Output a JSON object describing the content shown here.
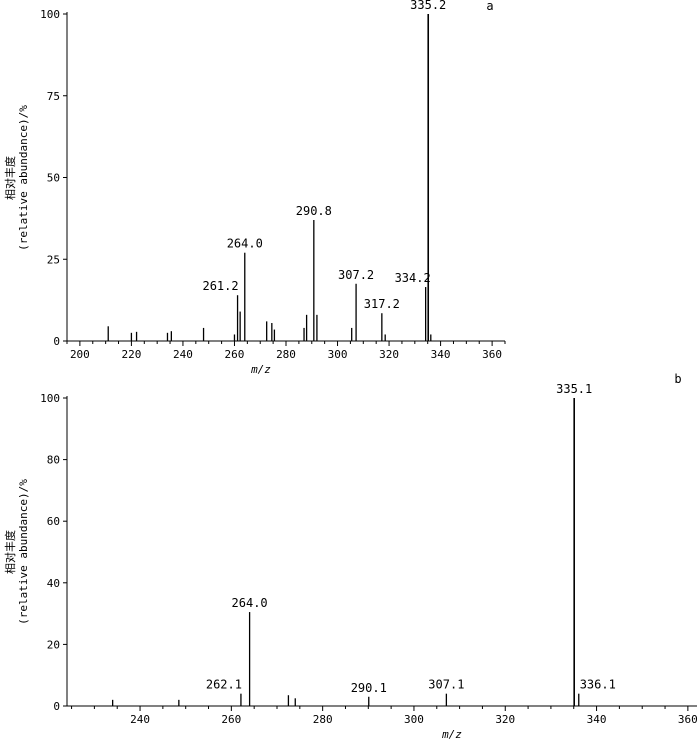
{
  "chart_data": [
    {
      "type": "bar",
      "panel_label": "a",
      "xlabel": "m/z",
      "ylabel": "相对丰度",
      "ylabel_en": "(relative abundance)/%",
      "xlim": [
        195,
        365
      ],
      "ylim": [
        0,
        100
      ],
      "xticks": [
        "200",
        "220",
        "240",
        "260",
        "280",
        "300",
        "320",
        "340",
        "360"
      ],
      "yticks": [
        "0",
        "25",
        "50",
        "75",
        "100"
      ],
      "grid": false,
      "peaks": [
        {
          "x": 211,
          "y": 4.5
        },
        {
          "x": 220,
          "y": 2.5
        },
        {
          "x": 222,
          "y": 2.8
        },
        {
          "x": 234,
          "y": 2.5
        },
        {
          "x": 235.5,
          "y": 3
        },
        {
          "x": 248,
          "y": 4
        },
        {
          "x": 260,
          "y": 2
        },
        {
          "x": 261.2,
          "y": 14,
          "label": "261.2"
        },
        {
          "x": 262.2,
          "y": 9
        },
        {
          "x": 264.0,
          "y": 27,
          "label": "264.0"
        },
        {
          "x": 272.5,
          "y": 6
        },
        {
          "x": 274.5,
          "y": 5.5
        },
        {
          "x": 275.5,
          "y": 3.5
        },
        {
          "x": 287,
          "y": 4
        },
        {
          "x": 288,
          "y": 8
        },
        {
          "x": 290.8,
          "y": 37,
          "label": "290.8"
        },
        {
          "x": 292,
          "y": 8
        },
        {
          "x": 305.5,
          "y": 4
        },
        {
          "x": 307.2,
          "y": 17.5,
          "label": "307.2"
        },
        {
          "x": 317.2,
          "y": 8.5,
          "label": "317.2"
        },
        {
          "x": 318.5,
          "y": 2
        },
        {
          "x": 334.2,
          "y": 16.5,
          "label": "334.2"
        },
        {
          "x": 335.2,
          "y": 100,
          "label": "335.2"
        },
        {
          "x": 336.2,
          "y": 2
        }
      ]
    },
    {
      "type": "bar",
      "panel_label": "b",
      "xlabel": "m/z",
      "ylabel": "相对丰度",
      "ylabel_en": "(relative abundance)/%",
      "xlim": [
        224,
        362
      ],
      "ylim": [
        0,
        100
      ],
      "xticks": [
        "240",
        "260",
        "280",
        "300",
        "320",
        "340",
        "360"
      ],
      "yticks": [
        "0",
        "20",
        "40",
        "60",
        "80",
        "100"
      ],
      "grid": false,
      "peaks": [
        {
          "x": 234,
          "y": 2
        },
        {
          "x": 248.5,
          "y": 2
        },
        {
          "x": 262.1,
          "y": 4,
          "label": "262.1"
        },
        {
          "x": 264.0,
          "y": 30.5,
          "label": "264.0"
        },
        {
          "x": 272.5,
          "y": 3.5
        },
        {
          "x": 274,
          "y": 2.5
        },
        {
          "x": 290.1,
          "y": 3,
          "label": "290.1"
        },
        {
          "x": 307.1,
          "y": 4,
          "label": "307.1"
        },
        {
          "x": 335.1,
          "y": 100,
          "label": "335.1"
        },
        {
          "x": 336.1,
          "y": 4,
          "label": "336.1"
        }
      ]
    }
  ]
}
